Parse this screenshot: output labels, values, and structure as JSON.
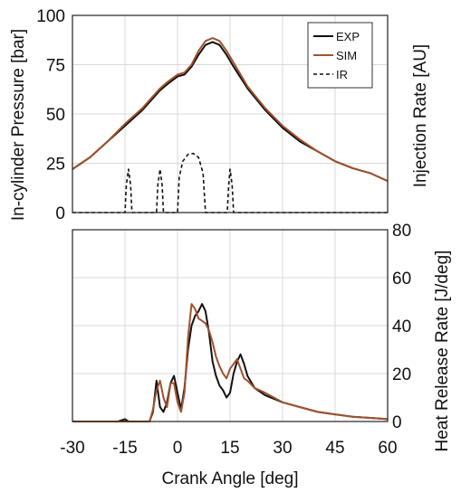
{
  "chart_data": {
    "type": "line",
    "x": {
      "label": "Crank Angle [deg]",
      "range": [
        -30,
        60
      ],
      "ticks": [
        "-30",
        "-15",
        "0",
        "15",
        "30",
        "45",
        "60"
      ]
    },
    "panels": [
      {
        "ylabel": "In-cylinder Pressure [bar]",
        "ylabel_right": "Injection Rate [AU]",
        "ylim": [
          0,
          100
        ],
        "yticks": [
          "0",
          "25",
          "50",
          "75",
          "100"
        ],
        "grid": true,
        "legend_position": "top-right",
        "series": [
          {
            "name": "EXP",
            "color": "#111111",
            "style": "solid",
            "points": [
              [
                -30,
                22
              ],
              [
                -25,
                28
              ],
              [
                -20,
                36
              ],
              [
                -15,
                44
              ],
              [
                -10,
                52
              ],
              [
                -7,
                58
              ],
              [
                -5,
                62
              ],
              [
                -3,
                65
              ],
              [
                0,
                69
              ],
              [
                2,
                70
              ],
              [
                4,
                74
              ],
              [
                6,
                80
              ],
              [
                8,
                85
              ],
              [
                10,
                86.5
              ],
              [
                12,
                85
              ],
              [
                14,
                80
              ],
              [
                16,
                74
              ],
              [
                20,
                63
              ],
              [
                25,
                52
              ],
              [
                30,
                43
              ],
              [
                35,
                36
              ],
              [
                40,
                31
              ],
              [
                45,
                26
              ],
              [
                50,
                22.5
              ],
              [
                55,
                20
              ],
              [
                60,
                16
              ]
            ]
          },
          {
            "name": "SIM",
            "color": "#a0522d",
            "style": "solid",
            "points": [
              [
                -30,
                22
              ],
              [
                -25,
                28
              ],
              [
                -20,
                36
              ],
              [
                -15,
                45
              ],
              [
                -10,
                53
              ],
              [
                -7,
                59
              ],
              [
                -5,
                63
              ],
              [
                -3,
                66
              ],
              [
                0,
                70
              ],
              [
                2,
                71
              ],
              [
                4,
                75
              ],
              [
                6,
                82
              ],
              [
                8,
                87
              ],
              [
                10,
                88.5
              ],
              [
                12,
                87
              ],
              [
                14,
                82
              ],
              [
                16,
                76
              ],
              [
                20,
                64
              ],
              [
                25,
                53
              ],
              [
                30,
                44
              ],
              [
                35,
                37
              ],
              [
                40,
                31
              ],
              [
                45,
                26
              ],
              [
                50,
                22.5
              ],
              [
                55,
                20
              ],
              [
                60,
                16
              ]
            ]
          },
          {
            "name": "IR",
            "color": "#111111",
            "style": "dashed",
            "points": [
              [
                -30,
                0
              ],
              [
                -15,
                0
              ],
              [
                -14.6,
                14
              ],
              [
                -14,
                22
              ],
              [
                -13.4,
                14
              ],
              [
                -13,
                0
              ],
              [
                -6,
                0
              ],
              [
                -5.6,
                14
              ],
              [
                -5,
                22
              ],
              [
                -4.4,
                14
              ],
              [
                -4,
                0
              ],
              [
                0,
                0
              ],
              [
                0.5,
                18
              ],
              [
                1.5,
                26
              ],
              [
                3,
                29.5
              ],
              [
                4.5,
                30
              ],
              [
                6,
                28
              ],
              [
                7.3,
                20
              ],
              [
                8,
                0
              ],
              [
                14.2,
                0
              ],
              [
                14.6,
                14
              ],
              [
                15,
                22
              ],
              [
                15.6,
                14
              ],
              [
                16,
                0
              ],
              [
                60,
                0
              ]
            ]
          }
        ]
      },
      {
        "ylabel": "Heat Release Rate [J/deg]",
        "ylim": [
          0,
          80
        ],
        "yticks": [
          "0",
          "20",
          "40",
          "60",
          "80"
        ],
        "grid": true,
        "series": [
          {
            "name": "EXP",
            "color": "#111111",
            "style": "solid",
            "points": [
              [
                -30,
                0
              ],
              [
                -17,
                0
              ],
              [
                -15,
                1
              ],
              [
                -14,
                0
              ],
              [
                -8,
                0
              ],
              [
                -7,
                4
              ],
              [
                -6,
                17
              ],
              [
                -5,
                6
              ],
              [
                -4,
                4
              ],
              [
                -3,
                8
              ],
              [
                -2,
                16
              ],
              [
                -1,
                19
              ],
              [
                0,
                12
              ],
              [
                1,
                5
              ],
              [
                2,
                14
              ],
              [
                3,
                30
              ],
              [
                4,
                40
              ],
              [
                5,
                44
              ],
              [
                6,
                46
              ],
              [
                7,
                49
              ],
              [
                8,
                46
              ],
              [
                9,
                37
              ],
              [
                10,
                25
              ],
              [
                11,
                19
              ],
              [
                12,
                15
              ],
              [
                13,
                13
              ],
              [
                14,
                10
              ],
              [
                15,
                12
              ],
              [
                16,
                20
              ],
              [
                17,
                25
              ],
              [
                18,
                28
              ],
              [
                19,
                24
              ],
              [
                20,
                19
              ],
              [
                22,
                14
              ],
              [
                25,
                11
              ],
              [
                30,
                8
              ],
              [
                35,
                6
              ],
              [
                40,
                4
              ],
              [
                45,
                3
              ],
              [
                50,
                2
              ],
              [
                55,
                1.5
              ],
              [
                60,
                1
              ]
            ]
          },
          {
            "name": "SIM",
            "color": "#a0522d",
            "style": "solid",
            "points": [
              [
                -30,
                0
              ],
              [
                -8,
                0
              ],
              [
                -7,
                5
              ],
              [
                -6,
                13
              ],
              [
                -5,
                17
              ],
              [
                -4,
                10
              ],
              [
                -3,
                6
              ],
              [
                -2,
                16
              ],
              [
                -1,
                16
              ],
              [
                0,
                8
              ],
              [
                1,
                4
              ],
              [
                2,
                12
              ],
              [
                3,
                35
              ],
              [
                4,
                49
              ],
              [
                5,
                47
              ],
              [
                6,
                43
              ],
              [
                7,
                42
              ],
              [
                8,
                41
              ],
              [
                9,
                38
              ],
              [
                10,
                33
              ],
              [
                11,
                27
              ],
              [
                12,
                23
              ],
              [
                13,
                20
              ],
              [
                14,
                18
              ],
              [
                15,
                22
              ],
              [
                16,
                24
              ],
              [
                17,
                26
              ],
              [
                18,
                22
              ],
              [
                19,
                18
              ],
              [
                20,
                17
              ],
              [
                22,
                14
              ],
              [
                25,
                12
              ],
              [
                30,
                8
              ],
              [
                35,
                6
              ],
              [
                40,
                4
              ],
              [
                45,
                3
              ],
              [
                50,
                2
              ],
              [
                55,
                1.5
              ],
              [
                60,
                1
              ]
            ]
          }
        ]
      }
    ]
  }
}
